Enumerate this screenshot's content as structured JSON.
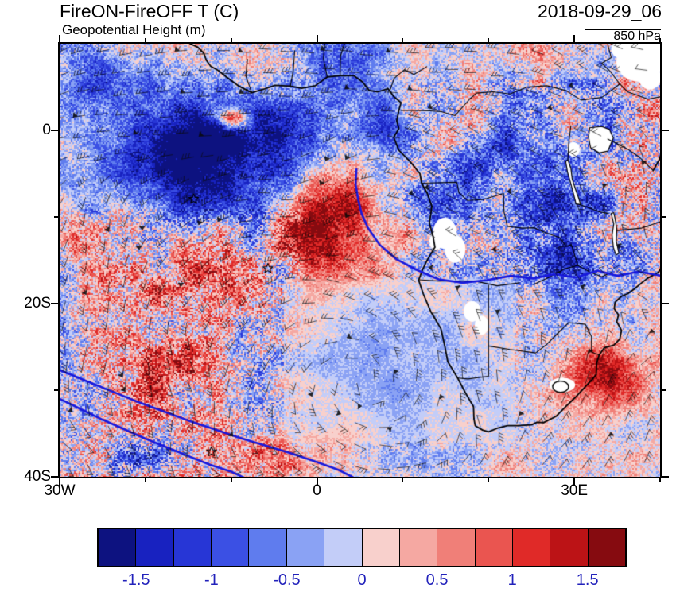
{
  "header": {
    "title": "FireON-FireOFF T (C)",
    "subtitle": "Geopotential Height (m)",
    "date": "2018-09-29_06",
    "level": "850 hPa"
  },
  "axes": {
    "y": [
      {
        "label": "0",
        "lat": 0
      },
      {
        "label": "20S",
        "lat": -20
      },
      {
        "label": "40S",
        "lat": -40
      }
    ],
    "x": [
      {
        "label": "30W",
        "lon": -30
      },
      {
        "label": "0",
        "lon": 0
      },
      {
        "label": "30E",
        "lon": 30
      }
    ]
  },
  "chart_data": {
    "type": "heatmap",
    "title": "FireON-FireOFF T (C)",
    "overlay_field": "Geopotential Height (m)",
    "timestamp": "2018-09-29_06",
    "pressure_level": "850 hPa",
    "units": "C",
    "x_axis": {
      "tick_labels": [
        "30W",
        "0",
        "30E"
      ],
      "domain_deg": [
        -30,
        40
      ]
    },
    "y_axis": {
      "tick_labels": [
        "0",
        "20S",
        "40S"
      ],
      "domain_deg": [
        10,
        -40
      ]
    },
    "colorbar": {
      "levels": [
        -1.5,
        -1.25,
        -1,
        -0.75,
        -0.5,
        -0.25,
        0,
        0.25,
        0.5,
        0.75,
        1,
        1.25,
        1.5
      ],
      "tick_labels": [
        "-1.5",
        "-1",
        "-0.5",
        "0",
        "0.5",
        "1",
        "1.5"
      ],
      "colors": [
        "#0d1280",
        "#1822c0",
        "#2736d6",
        "#3b50e4",
        "#5f7cee",
        "#8aa2f4",
        "#c3cdf8",
        "#f8d0cc",
        "#f5a8a2",
        "#f07f78",
        "#ea5550",
        "#e02a28",
        "#bc1316",
        "#860b10"
      ],
      "label_color": "#2222bb"
    },
    "contours": {
      "color": "#1818dd"
    },
    "legend_position": "bottom"
  }
}
